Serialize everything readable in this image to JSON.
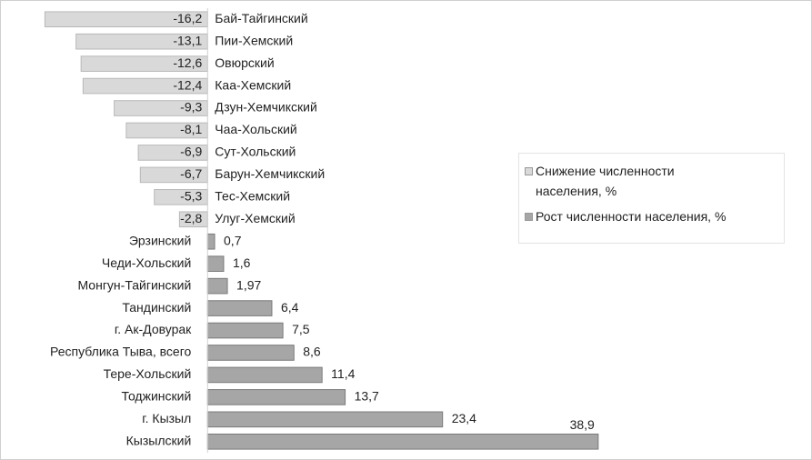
{
  "chart_data": {
    "type": "bar",
    "orientation": "horizontal",
    "categories": [
      "Бай-Тайгинский",
      "Пии-Хемский",
      "Овюрский",
      "Каа-Хемский",
      "Дзун-Хемчикский",
      "Чаа-Хольский",
      "Сут-Хольский",
      "Барун-Хемчикский",
      "Тес-Хемский",
      "Улуг-Хемский",
      "Эрзинский",
      "Чеди-Хольский",
      "Монгун-Тайгинский",
      "Тандинский",
      "г. Ак-Довурак",
      "Республика Тыва, всего",
      "Тере-Хольский",
      "Тоджинский",
      "г. Кызыл",
      "Кызылский"
    ],
    "series": [
      {
        "name": "Снижение численности населения, %",
        "color": "#d9d9d9",
        "values": [
          -16.2,
          -13.1,
          -12.6,
          -12.4,
          -9.3,
          -8.1,
          -6.9,
          -6.7,
          -5.3,
          -2.8,
          null,
          null,
          null,
          null,
          null,
          null,
          null,
          null,
          null,
          null
        ],
        "value_labels": [
          "-16,2",
          "-13,1",
          "-12,6",
          "-12,4",
          "-9,3",
          "-8,1",
          "-6,9",
          "-6,7",
          "-5,3",
          "-2,8",
          null,
          null,
          null,
          null,
          null,
          null,
          null,
          null,
          null,
          null
        ]
      },
      {
        "name": "Рост численности населения, %",
        "color": "#a6a6a6",
        "values": [
          null,
          null,
          null,
          null,
          null,
          null,
          null,
          null,
          null,
          null,
          0.7,
          1.6,
          1.97,
          6.4,
          7.5,
          8.6,
          11.4,
          13.7,
          23.4,
          38.9
        ],
        "value_labels": [
          null,
          null,
          null,
          null,
          null,
          null,
          null,
          null,
          null,
          null,
          "0,7",
          "1,6",
          "1,97",
          "6,4",
          "7,5",
          "8,6",
          "11,4",
          "13,7",
          "23,4",
          "38,9"
        ]
      }
    ],
    "xlim": [
      -18.5,
      40
    ],
    "legend": "right"
  }
}
